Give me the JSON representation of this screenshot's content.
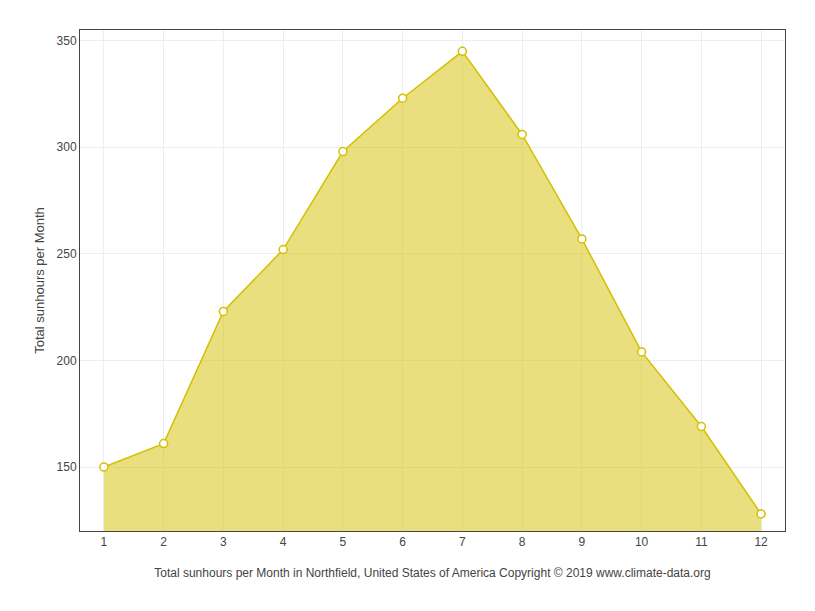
{
  "chart_data": {
    "type": "area",
    "x": [
      1,
      2,
      3,
      4,
      5,
      6,
      7,
      8,
      9,
      10,
      11,
      12
    ],
    "values": [
      150,
      161,
      223,
      252,
      298,
      323,
      345,
      306,
      257,
      204,
      169,
      128
    ],
    "color": "#D4C000",
    "marker": "circle",
    "xlabel": "Total sunhours per Month in Northfield, United States of America Copyright © 2019 www.climate-data.org",
    "ylabel": "Total sunhours per Month",
    "xlim": [
      0.6,
      12.4
    ],
    "xticks": [
      1,
      2,
      3,
      4,
      5,
      6,
      7,
      8,
      9,
      10,
      11,
      12
    ],
    "ylim": [
      120,
      355
    ],
    "yticks": [
      150,
      200,
      250,
      300,
      350
    ],
    "grid": true
  }
}
